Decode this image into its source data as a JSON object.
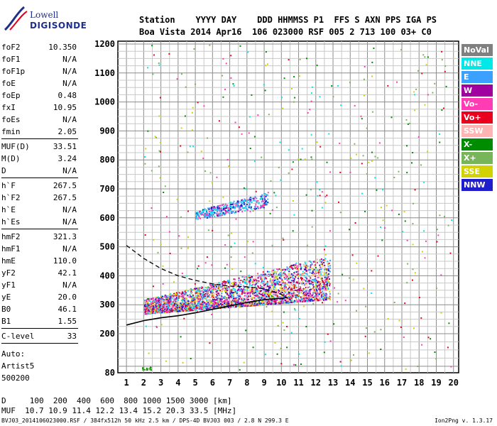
{
  "logo": {
    "line1": "Lowell",
    "line2": "DIGISONDE"
  },
  "header": {
    "row1": "Station    YYYY DAY    DDD HHMMSS P1  FFS S AXN PPS IGA PS",
    "row2": "Boa Vista 2014 Apr16  106 023000 RSF 005 2 713 100 03+ C0"
  },
  "params": {
    "group1": [
      {
        "name": "foF2",
        "value": "10.350"
      },
      {
        "name": "foF1",
        "value": "N/A"
      },
      {
        "name": "foF1p",
        "value": "N/A"
      },
      {
        "name": "foE",
        "value": "N/A"
      },
      {
        "name": "foEp",
        "value": "0.48"
      },
      {
        "name": "fxI",
        "value": "10.95"
      },
      {
        "name": "foEs",
        "value": "N/A"
      },
      {
        "name": "fmin",
        "value": "2.05"
      }
    ],
    "group2": [
      {
        "name": "MUF(D)",
        "value": "33.51"
      },
      {
        "name": "M(D)",
        "value": "3.24"
      },
      {
        "name": "D",
        "value": "N/A"
      }
    ],
    "group3": [
      {
        "name": "h`F",
        "value": "267.5"
      },
      {
        "name": "h`F2",
        "value": "267.5"
      },
      {
        "name": "h`E",
        "value": "N/A"
      },
      {
        "name": "h`Es",
        "value": "N/A"
      }
    ],
    "group4": [
      {
        "name": "hmF2",
        "value": "321.3"
      },
      {
        "name": "hmF1",
        "value": "N/A"
      },
      {
        "name": "hmE",
        "value": "110.0"
      },
      {
        "name": "yF2",
        "value": "42.1"
      },
      {
        "name": "yF1",
        "value": "N/A"
      },
      {
        "name": "yE",
        "value": "20.0"
      },
      {
        "name": "B0",
        "value": "46.1"
      },
      {
        "name": "B1",
        "value": "1.55"
      }
    ],
    "group5": [
      {
        "name": "C-level",
        "value": "33"
      }
    ],
    "auto": [
      "Auto:",
      "Artist5",
      "500200"
    ]
  },
  "legend": [
    {
      "label": "NoVal",
      "color": "#808080"
    },
    {
      "label": "NNE",
      "color": "#00e8e8"
    },
    {
      "label": "E",
      "color": "#3ca0ff"
    },
    {
      "label": "W",
      "color": "#a000a0"
    },
    {
      "label": "Vo-",
      "color": "#ff3cb4"
    },
    {
      "label": "Vo+",
      "color": "#e8001e"
    },
    {
      "label": "SSW",
      "color": "#ffb4b4"
    },
    {
      "label": "X-",
      "color": "#008c00"
    },
    {
      "label": "X+",
      "color": "#78b45a"
    },
    {
      "label": "SSE",
      "color": "#d2d200"
    },
    {
      "label": "NNW",
      "color": "#1e1ecc"
    }
  ],
  "footer": {
    "row_d": "D     100  200  400  600  800 1000 1500 3000 [km]",
    "row_muf": "MUF  10.7 10.9 11.4 12.2 13.4 15.2 20.3 33.5 [MHz]",
    "file": "BVJ03_2014106023000.RSF / 384fx512h 50 kHz 2.5 km / DPS-4D BVJ03 003 / 2.8 N 299.3 E",
    "version": "Ion2Png v. 1.3.17"
  },
  "chart_data": {
    "type": "scatter",
    "x": {
      "ticks": [
        1,
        2,
        3,
        4,
        5,
        6,
        7,
        8,
        9,
        10,
        11,
        12,
        13,
        14,
        15,
        16,
        17,
        18,
        19,
        20
      ],
      "range": [
        0.5,
        20.3
      ]
    },
    "y": {
      "ticks": [
        80,
        200,
        300,
        400,
        500,
        600,
        700,
        800,
        900,
        1000,
        1100,
        1200
      ],
      "range": [
        80,
        1200
      ]
    },
    "grid": true,
    "clusters": [
      {
        "name": "F2 trace",
        "color_mix": [
          "#e8001e",
          "#ff3cb4",
          "#a000a0",
          "#1e1ecc",
          "#00e8e8",
          "#ffb4b4",
          "#3ca0ff",
          "#d2d200"
        ],
        "xmin": 2.0,
        "xmax": 12.8,
        "ylo_start": 270,
        "ylo_end": 320,
        "yhi_start": 320,
        "yhi_end": 470,
        "count": 3200
      },
      {
        "name": "F2 second hop",
        "color_mix": [
          "#00e8e8",
          "#3ca0ff",
          "#1e1ecc",
          "#ff3cb4"
        ],
        "xmin": 5.0,
        "xmax": 9.2,
        "ylo_start": 595,
        "ylo_end": 640,
        "yhi_start": 625,
        "yhi_end": 690,
        "count": 420
      },
      {
        "name": "scattered noise",
        "color_mix": [
          "#008c00",
          "#78b45a",
          "#e8001e",
          "#ff3cb4",
          "#d2d200",
          "#00e8e8"
        ],
        "xmin": 2.0,
        "xmax": 20.0,
        "ylo_start": 90,
        "ylo_end": 90,
        "yhi_start": 1200,
        "yhi_end": 1200,
        "count": 420
      },
      {
        "name": "Es low",
        "color_mix": [
          "#008c00",
          "#78b45a"
        ],
        "xmin": 1.9,
        "xmax": 2.4,
        "ylo_start": 90,
        "ylo_end": 90,
        "yhi_start": 100,
        "yhi_end": 100,
        "count": 20
      }
    ],
    "profile_solid": [
      [
        1,
        230
      ],
      [
        2,
        245
      ],
      [
        3,
        255
      ],
      [
        4,
        262
      ],
      [
        5,
        272
      ],
      [
        6,
        284
      ],
      [
        7,
        296
      ],
      [
        8,
        308
      ],
      [
        9,
        318
      ],
      [
        10,
        322
      ],
      [
        10.35,
        325
      ]
    ],
    "profile_dashed": [
      [
        1,
        505
      ],
      [
        2,
        460
      ],
      [
        3,
        425
      ],
      [
        4,
        400
      ],
      [
        5,
        384
      ],
      [
        6,
        372
      ],
      [
        7,
        364
      ],
      [
        8,
        362
      ],
      [
        9,
        355
      ],
      [
        10,
        336
      ],
      [
        10.35,
        322
      ]
    ]
  }
}
